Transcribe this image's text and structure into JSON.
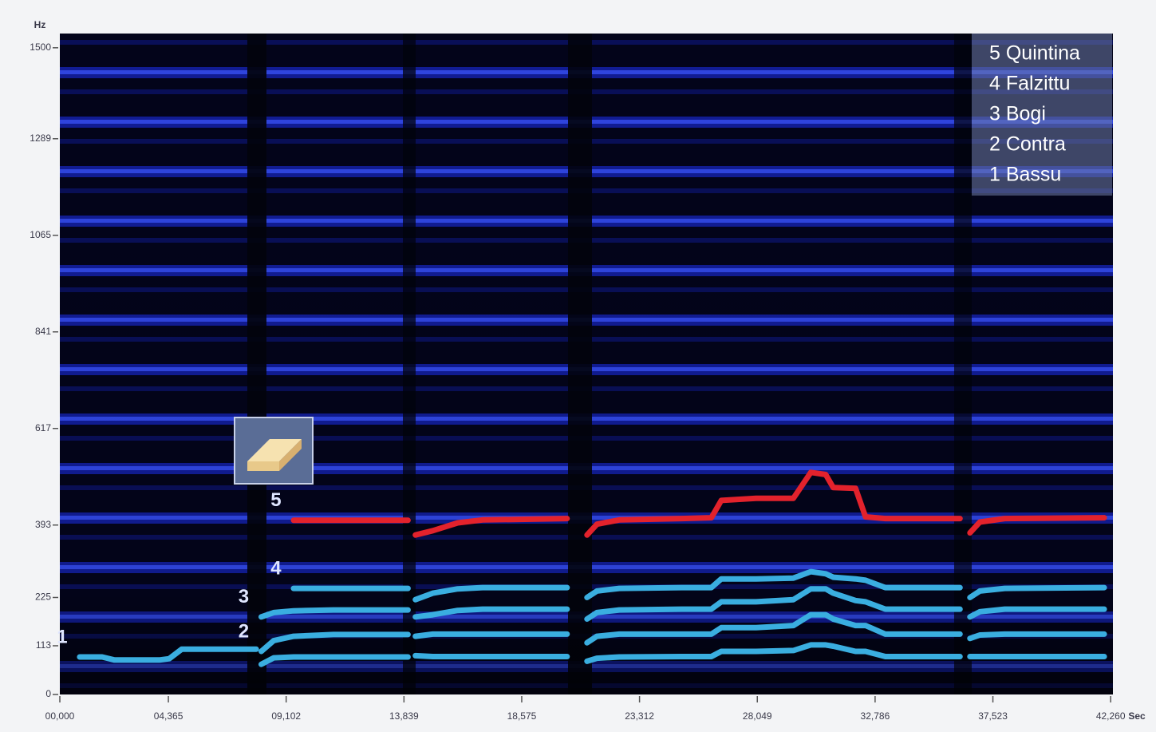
{
  "chart_data": {
    "type": "line",
    "x_unit": "Sec",
    "y_unit": "Hz",
    "xlim": [
      0,
      42.35
    ],
    "ylim": [
      0,
      1533
    ],
    "xticks": [
      {
        "value": 0,
        "label": "00,000"
      },
      {
        "value": 4.365,
        "label": "04,365"
      },
      {
        "value": 9.102,
        "label": "09,102"
      },
      {
        "value": 13.839,
        "label": "13,839"
      },
      {
        "value": 18.575,
        "label": "18,575"
      },
      {
        "value": 23.312,
        "label": "23,312"
      },
      {
        "value": 28.049,
        "label": "28,049"
      },
      {
        "value": 32.786,
        "label": "32,786"
      },
      {
        "value": 37.523,
        "label": "37,523"
      },
      {
        "value": 42.26,
        "label": "42,260"
      }
    ],
    "yticks": [
      0,
      113,
      225,
      393,
      617,
      841,
      1065,
      1289,
      1500
    ],
    "x": [
      0.8,
      1.7,
      2.2,
      4.0,
      4.4,
      4.9,
      7.9,
      8.0,
      8.1,
      8.6,
      9.4,
      11,
      14.0,
      14.1,
      14.3,
      15,
      16,
      17,
      20.4,
      20.8,
      21.2,
      21.6,
      22.5,
      25,
      26.2,
      26.6,
      28,
      29.5,
      30.2,
      30.8,
      31.1,
      32.0,
      32.4,
      33.2,
      36.2,
      36.4,
      36.6,
      37.0,
      38,
      42.0
    ],
    "series": [
      {
        "name": "1 Bassu",
        "label": "1",
        "color": "#3aaee0",
        "values": [
          87,
          87,
          80,
          80,
          83,
          105,
          105,
          null,
          70,
          85,
          87,
          87,
          87,
          null,
          90,
          88,
          88,
          88,
          88,
          null,
          77,
          84,
          87,
          88,
          88,
          100,
          100,
          102,
          115,
          115,
          112,
          100,
          100,
          88,
          88,
          null,
          88,
          88,
          88,
          88
        ]
      },
      {
        "name": "2 Contra",
        "label": "2",
        "color": "#3aaee0",
        "values": [
          null,
          null,
          null,
          null,
          null,
          null,
          null,
          null,
          100,
          125,
          135,
          139,
          139,
          null,
          135,
          140,
          140,
          140,
          140,
          null,
          120,
          135,
          140,
          140,
          140,
          155,
          155,
          160,
          185,
          185,
          175,
          160,
          160,
          140,
          140,
          null,
          130,
          138,
          140,
          140
        ]
      },
      {
        "name": "3 Bogi",
        "label": "3",
        "color": "#3aaee0",
        "values": [
          null,
          null,
          null,
          null,
          null,
          null,
          null,
          null,
          180,
          190,
          194,
          196,
          196,
          null,
          180,
          185,
          195,
          198,
          198,
          null,
          175,
          190,
          196,
          198,
          198,
          215,
          215,
          220,
          245,
          245,
          235,
          218,
          215,
          198,
          198,
          null,
          180,
          192,
          198,
          198
        ]
      },
      {
        "name": "4 Falzittu",
        "label": "4",
        "color": "#3aaee0",
        "values": [
          null,
          null,
          null,
          null,
          null,
          null,
          null,
          null,
          null,
          null,
          246,
          246,
          246,
          null,
          220,
          235,
          245,
          248,
          248,
          null,
          225,
          240,
          246,
          248,
          248,
          268,
          268,
          270,
          285,
          280,
          272,
          268,
          265,
          248,
          248,
          null,
          225,
          240,
          246,
          248
        ]
      },
      {
        "name": "5 Quintina",
        "label": "5",
        "color": "#e3222c",
        "values": [
          null,
          null,
          null,
          null,
          null,
          null,
          null,
          null,
          null,
          null,
          404,
          404,
          404,
          null,
          370,
          380,
          398,
          405,
          408,
          null,
          370,
          395,
          405,
          408,
          410,
          450,
          455,
          455,
          515,
          510,
          480,
          478,
          412,
          408,
          408,
          null,
          375,
          400,
          408,
          410
        ]
      }
    ],
    "legend": "upper right"
  }
}
